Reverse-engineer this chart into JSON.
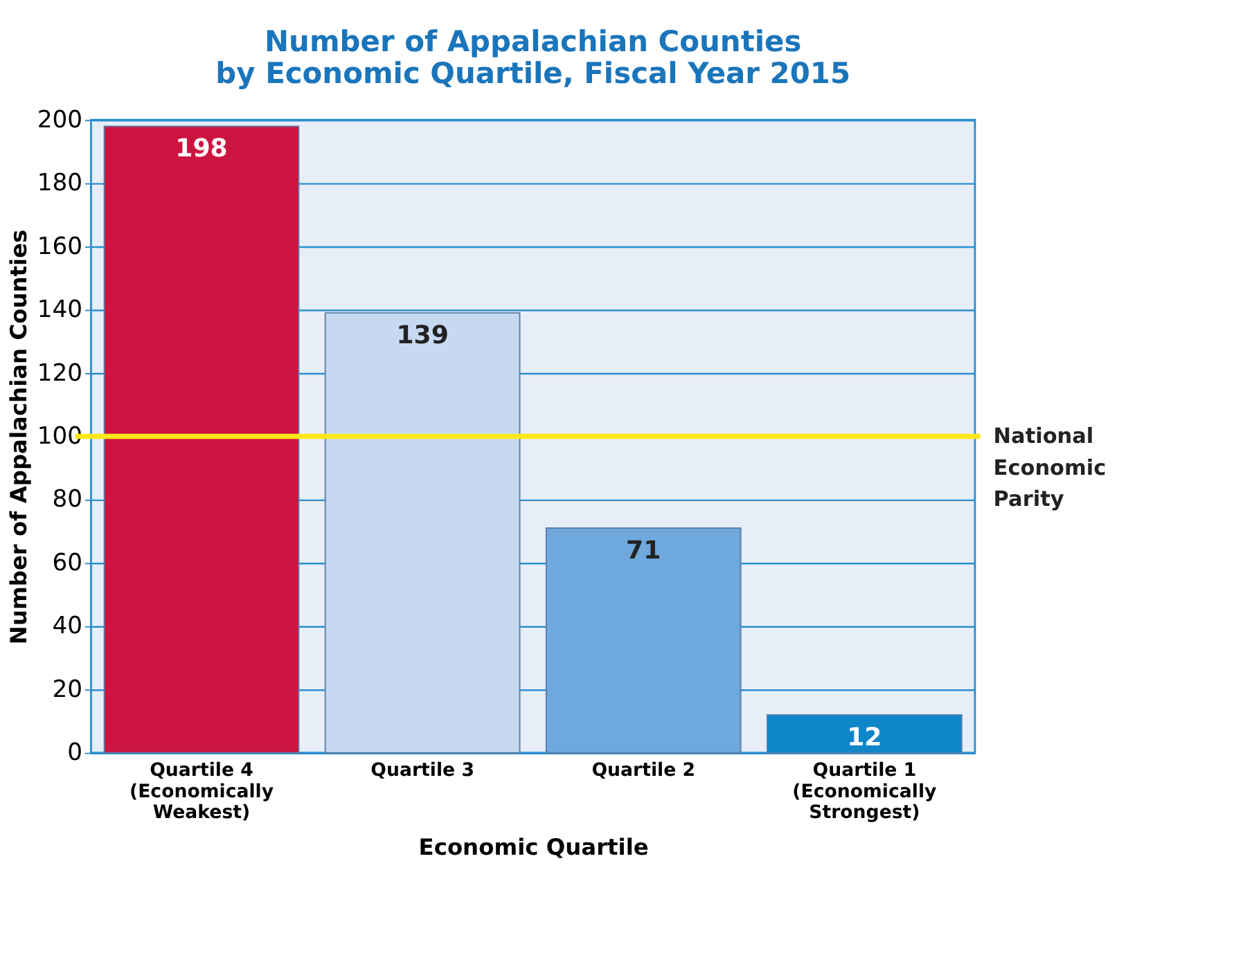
{
  "chart_data": {
    "type": "bar",
    "title": [
      "Number of Appalachian Counties",
      "by Economic Quartile, Fiscal Year 2015"
    ],
    "xlabel": "Economic Quartile",
    "ylabel": "Number of Appalachian Counties",
    "categories": [
      "Quartile 4\n(Economically\nWeakest)",
      "Quartile 3",
      "Quartile 2",
      "Quartile 1\n(Economically\nStrongest)"
    ],
    "values": [
      198,
      139,
      71,
      12
    ],
    "colors": [
      "#cc1440",
      "#c6d9f1",
      "#6fa8dc",
      "#0f86c8"
    ],
    "ylim": [
      0,
      200
    ],
    "yticks": [
      0,
      20,
      40,
      60,
      80,
      100,
      120,
      140,
      160,
      180,
      200
    ],
    "grid": "y",
    "data_labels": true,
    "ref_lines": [
      {
        "axis": "y",
        "value": 100,
        "label": "National\nEconomic\nParity",
        "color": "#ffe81a"
      }
    ]
  }
}
